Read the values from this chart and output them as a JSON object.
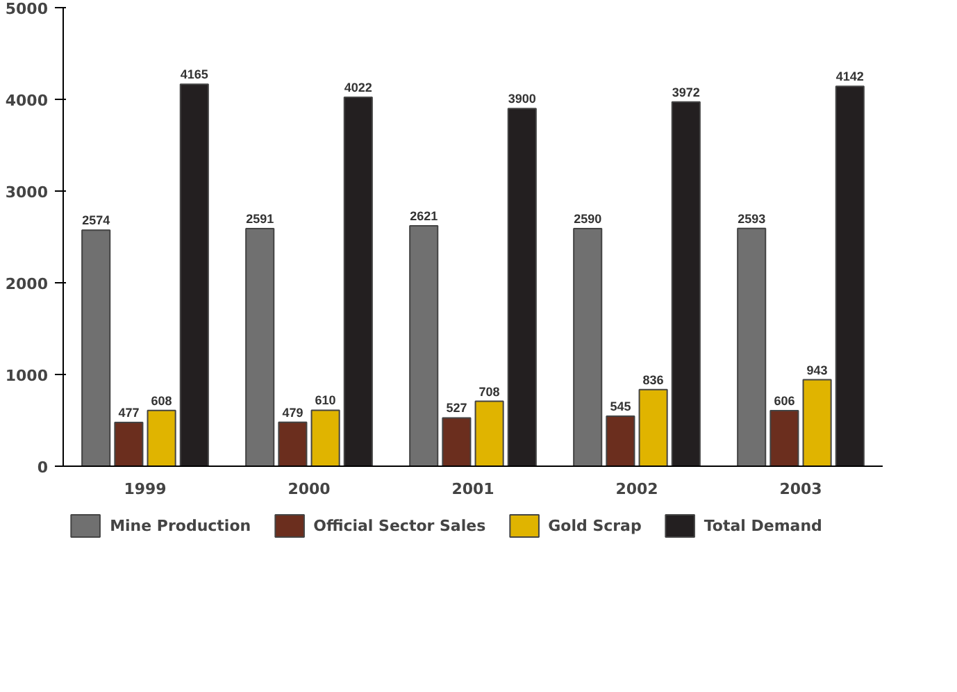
{
  "chart_data": {
    "type": "bar",
    "categories": [
      "1999",
      "2000",
      "2001",
      "2002",
      "2003"
    ],
    "series": [
      {
        "name": "Mine Production",
        "color": "#707070",
        "values": [
          2574,
          2591,
          2621,
          2590,
          2593
        ]
      },
      {
        "name": "Official Sector Sales",
        "color": "#6b2e1e",
        "values": [
          477,
          479,
          527,
          545,
          606
        ]
      },
      {
        "name": "Gold Scrap",
        "color": "#e0b400",
        "values": [
          608,
          610,
          708,
          836,
          943
        ]
      },
      {
        "name": "Total Demand",
        "color": "#231f20",
        "values": [
          4165,
          4022,
          3900,
          3972,
          4142
        ]
      }
    ],
    "ylim": [
      0,
      5000
    ],
    "yticks": [
      0,
      1000,
      2000,
      3000,
      4000,
      5000
    ],
    "data_labels": true,
    "grid": false,
    "legend": "bottom"
  }
}
